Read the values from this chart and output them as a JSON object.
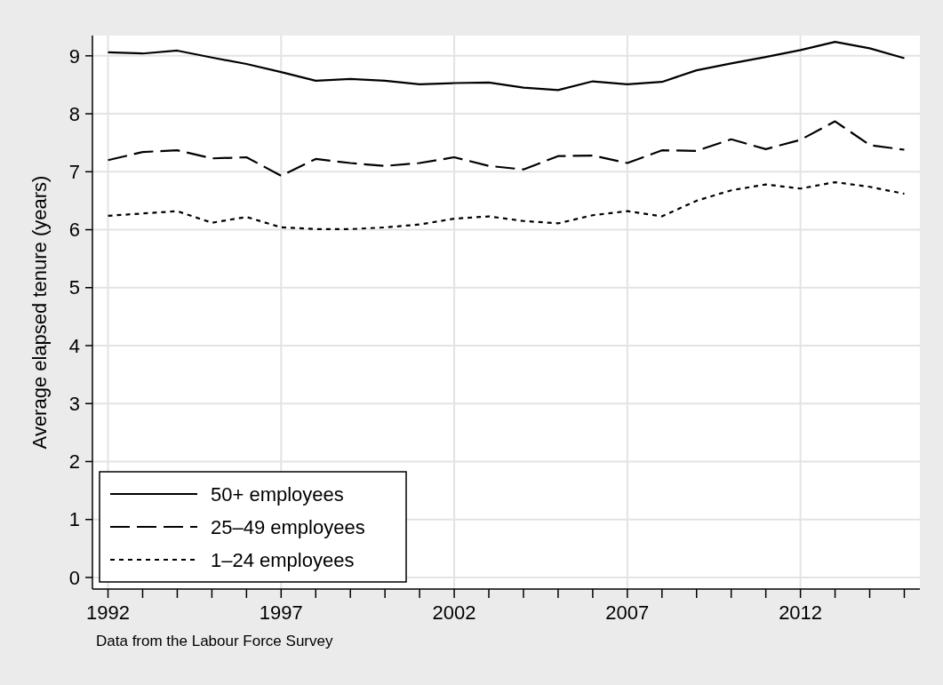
{
  "chart_data": {
    "type": "line",
    "ylabel": "Average elapsed tenure (years)",
    "annotations": [
      "Data from the Labour Force Survey"
    ],
    "x": [
      1992,
      1993,
      1994,
      1995,
      1996,
      1997,
      1998,
      1999,
      2000,
      2001,
      2002,
      2003,
      2004,
      2005,
      2006,
      2007,
      2008,
      2009,
      2010,
      2011,
      2012,
      2013,
      2014,
      2015
    ],
    "series": [
      {
        "name": "50+ employees",
        "color": "#000000",
        "line_style": "solid",
        "values": [
          9.06,
          9.04,
          9.09,
          8.97,
          8.86,
          8.72,
          8.57,
          8.6,
          8.57,
          8.51,
          8.53,
          8.54,
          8.45,
          8.41,
          8.56,
          8.51,
          8.55,
          8.75,
          8.87,
          8.98,
          9.1,
          9.24,
          9.13,
          8.96
        ]
      },
      {
        "name": "25–49 employees",
        "color": "#000000",
        "line_style": "dashed",
        "values": [
          7.2,
          7.34,
          7.37,
          7.23,
          7.25,
          6.93,
          7.22,
          7.15,
          7.1,
          7.15,
          7.25,
          7.1,
          7.04,
          7.27,
          7.28,
          7.15,
          7.37,
          7.36,
          7.56,
          7.39,
          7.55,
          7.87,
          7.46,
          7.38
        ]
      },
      {
        "name": "1–24 employees",
        "color": "#000000",
        "line_style": "dotted",
        "values": [
          6.24,
          6.28,
          6.32,
          6.12,
          6.22,
          6.04,
          6.01,
          6.01,
          6.04,
          6.09,
          6.19,
          6.23,
          6.15,
          6.11,
          6.25,
          6.32,
          6.23,
          6.5,
          6.68,
          6.78,
          6.71,
          6.82,
          6.74,
          6.62
        ]
      }
    ],
    "xlim": [
      1991.55,
      2015.45
    ],
    "ylim": [
      -0.2,
      9.35
    ],
    "xticks": [
      1992,
      {
        "value": 1993,
        "label": null
      },
      {
        "value": 1994,
        "label": null
      },
      {
        "value": 1995,
        "label": null
      },
      {
        "value": 1996,
        "label": null
      },
      1997,
      {
        "value": 1998,
        "label": null
      },
      {
        "value": 1999,
        "label": null
      },
      {
        "value": 2000,
        "label": null
      },
      {
        "value": 2001,
        "label": null
      },
      2002,
      {
        "value": 2003,
        "label": null
      },
      {
        "value": 2004,
        "label": null
      },
      {
        "value": 2005,
        "label": null
      },
      {
        "value": 2006,
        "label": null
      },
      2007,
      {
        "value": 2008,
        "label": null
      },
      {
        "value": 2009,
        "label": null
      },
      {
        "value": 2010,
        "label": null
      },
      {
        "value": 2011,
        "label": null
      },
      2012,
      {
        "value": 2013,
        "label": null
      },
      {
        "value": 2014,
        "label": null
      },
      {
        "value": 2015,
        "label": null
      }
    ],
    "yticks": [
      0,
      1,
      2,
      3,
      4,
      5,
      6,
      7,
      8,
      9
    ],
    "grid": true,
    "legend": "bottom left"
  }
}
